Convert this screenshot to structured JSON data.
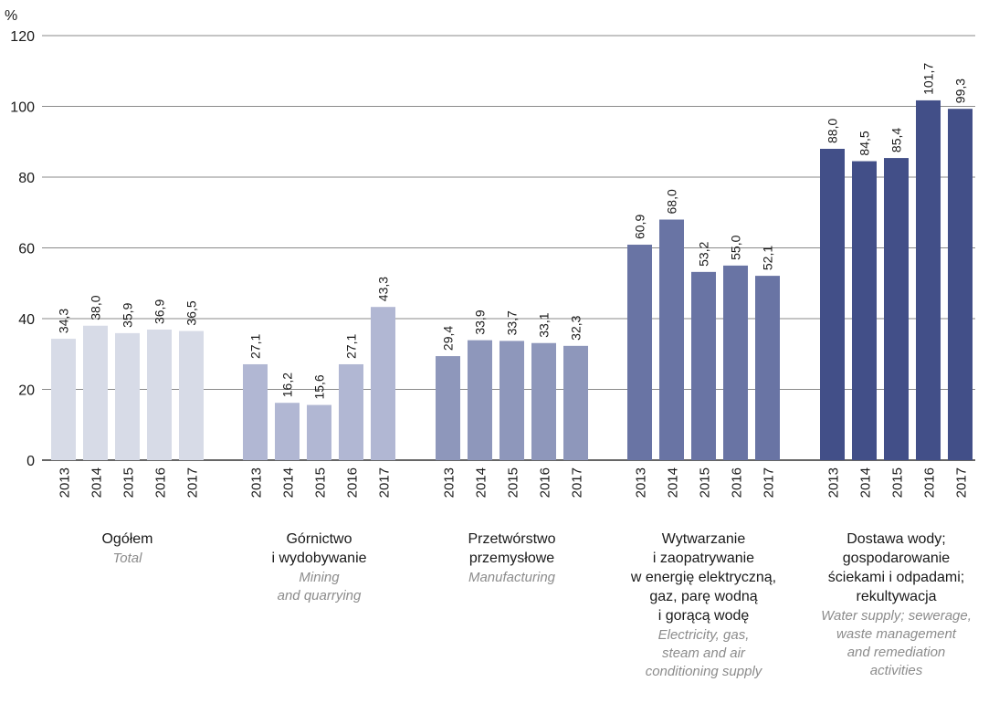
{
  "chart_data": {
    "type": "bar",
    "y_unit": "%",
    "ylim": [
      0,
      120
    ],
    "y_ticks": [
      0,
      20,
      40,
      60,
      80,
      100,
      120
    ],
    "y_tick_labels": [
      "0",
      "20",
      "40",
      "60",
      "80",
      "100",
      "120"
    ],
    "grid": true,
    "categories": [
      "2013",
      "2014",
      "2015",
      "2016",
      "2017"
    ],
    "groups": [
      {
        "label_pl": [
          "Ogółem"
        ],
        "label_en": [
          "Total"
        ],
        "color": "#d7dbe7",
        "values": [
          34.3,
          38.0,
          35.9,
          36.9,
          36.5
        ],
        "value_labels": [
          "34,3",
          "38,0",
          "35,9",
          "36,9",
          "36,5"
        ]
      },
      {
        "label_pl": [
          "Górnictwo",
          "i wydobywanie"
        ],
        "label_en": [
          "Mining",
          "and quarrying"
        ],
        "color": "#b1b7d3",
        "values": [
          27.1,
          16.2,
          15.6,
          27.1,
          43.3
        ],
        "value_labels": [
          "27,1",
          "16,2",
          "15,6",
          "27,1",
          "43,3"
        ]
      },
      {
        "label_pl": [
          "Przetwórstwo",
          "przemysłowe"
        ],
        "label_en": [
          "Manufacturing"
        ],
        "color": "#8e97bb",
        "values": [
          29.4,
          33.9,
          33.7,
          33.1,
          32.3
        ],
        "value_labels": [
          "29,4",
          "33,9",
          "33,7",
          "33,1",
          "32,3"
        ]
      },
      {
        "label_pl": [
          "Wytwarzanie",
          "i zaopatrywanie",
          "w energię elektryczną,",
          "gaz, parę wodną",
          "i gorącą wodę"
        ],
        "label_en": [
          "Electricity, gas,",
          "steam and air",
          "conditioning supply"
        ],
        "color": "#6974a4",
        "values": [
          60.9,
          68.0,
          53.2,
          55.0,
          52.1
        ],
        "value_labels": [
          "60,9",
          "68,0",
          "53,2",
          "55,0",
          "52,1"
        ]
      },
      {
        "label_pl": [
          "Dostawa wody;",
          "gospodarowanie",
          "ściekami i odpadami;",
          "rekultywacja"
        ],
        "label_en": [
          "Water supply;  sewerage,",
          "waste management",
          "and remediation",
          "activities"
        ],
        "color": "#424f88",
        "values": [
          88.0,
          84.5,
          85.4,
          101.7,
          99.3
        ],
        "value_labels": [
          "88,0",
          "84,5",
          "85,4",
          "101,7",
          "99,3"
        ]
      }
    ]
  }
}
